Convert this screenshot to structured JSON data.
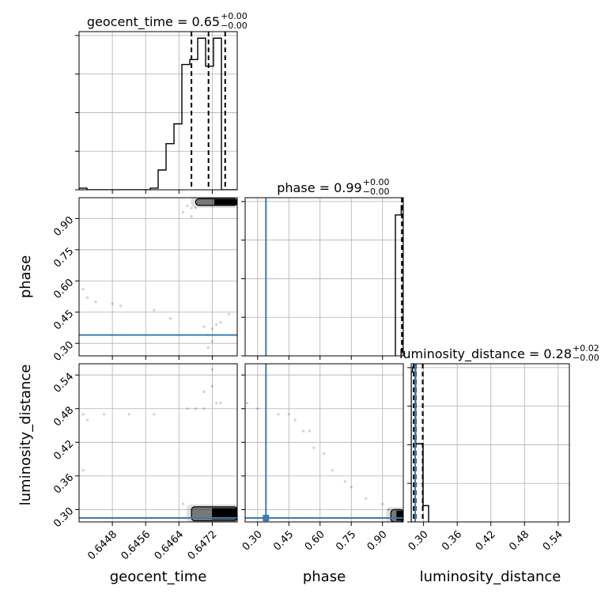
{
  "chart_data": {
    "type": "corner",
    "parameters": [
      "geocent_time",
      "phase",
      "luminosity_distance"
    ],
    "truth_color": "#3d7bb0",
    "truth": {
      "geocent_time": null,
      "phase": 0.34,
      "luminosity_distance": 0.285
    },
    "diagonal": [
      {
        "param": "geocent_time",
        "title": {
          "prefix": "geocent_time = 0.65",
          "upper": "+0.00",
          "lower": "−0.00"
        },
        "xlim": [
          0.644,
          0.6478
        ],
        "bin_edges": [
          0.644,
          0.64419,
          0.64438,
          0.64457,
          0.64476,
          0.64495,
          0.64514,
          0.64533,
          0.64552,
          0.64571,
          0.6459,
          0.64609,
          0.64628,
          0.64647,
          0.64666,
          0.64685,
          0.64704,
          0.64723,
          0.64742,
          0.64761,
          0.6478
        ],
        "counts": [
          1,
          0,
          0,
          0,
          0,
          0,
          0,
          0,
          0,
          1,
          12,
          28,
          40,
          76,
          79,
          92,
          75,
          92,
          0,
          0
        ],
        "ymax": 95,
        "quantiles": [
          0.6467,
          0.64711,
          0.64751
        ]
      },
      {
        "param": "phase",
        "title": {
          "prefix": "phase = 0.99",
          "upper": "+0.00",
          "lower": "−0.00"
        },
        "xlim": [
          0.24,
          1.0
        ],
        "bin_edges": [
          0.962,
          0.99,
          1.0
        ],
        "counts": [
          90,
          96
        ],
        "ymax": 100,
        "quantiles": [
          0.993,
          0.997,
          0.999
        ]
      },
      {
        "param": "luminosity_distance",
        "title": {
          "prefix": "luminosity_distance = 0.28",
          "upper": "+0.02",
          "lower": "−0.00"
        },
        "xlim": [
          0.278,
          0.56
        ],
        "bin_edges": [
          0.278,
          0.2805,
          0.286,
          0.299,
          0.309
        ],
        "counts": [
          92,
          95,
          48,
          10
        ],
        "ymax": 96,
        "quantiles": [
          0.2825,
          0.286,
          0.2985
        ]
      }
    ],
    "ranges": {
      "geocent_time": [
        0.644,
        0.6478
      ],
      "phase": [
        0.24,
        1.0
      ],
      "luminosity_distance": [
        0.278,
        0.56
      ]
    },
    "ticks": {
      "geocent_time": [
        "0.6448",
        "0.6456",
        "0.6464",
        "0.6472"
      ],
      "phase": [
        "0.30",
        "0.45",
        "0.60",
        "0.75",
        "0.90"
      ],
      "luminosity_distance": [
        "0.30",
        "0.36",
        "0.42",
        "0.48",
        "0.54"
      ]
    },
    "tick_values": {
      "geocent_time": [
        0.6448,
        0.6456,
        0.6464,
        0.6472
      ],
      "phase": [
        0.3,
        0.45,
        0.6,
        0.75,
        0.9
      ],
      "luminosity_distance": [
        0.3,
        0.36,
        0.42,
        0.48,
        0.54
      ]
    },
    "scatter": {
      "geocent_time|phase": [
        [
          0.6441,
          0.56
        ],
        [
          0.6442,
          0.52
        ],
        [
          0.6444,
          0.5
        ],
        [
          0.6448,
          0.49
        ],
        [
          0.645,
          0.48
        ],
        [
          0.6458,
          0.46
        ],
        [
          0.6462,
          0.42
        ],
        [
          0.6466,
          0.96
        ],
        [
          0.6467,
          0.95
        ],
        [
          0.6468,
          0.95
        ],
        [
          0.6467,
          0.91
        ],
        [
          0.647,
          0.38
        ],
        [
          0.6472,
          0.37
        ],
        [
          0.6473,
          0.39
        ],
        [
          0.6474,
          0.4
        ],
        [
          0.6472,
          0.31
        ],
        [
          0.6471,
          0.28
        ],
        [
          0.6476,
          0.44
        ],
        [
          0.6471,
          0.34
        ],
        [
          0.6465,
          0.93
        ]
      ],
      "geocent_time|luminosity_distance": [
        [
          0.6441,
          0.47
        ],
        [
          0.6441,
          0.37
        ],
        [
          0.6442,
          0.46
        ],
        [
          0.6446,
          0.47
        ],
        [
          0.6452,
          0.47
        ],
        [
          0.6458,
          0.47
        ],
        [
          0.6466,
          0.48
        ],
        [
          0.6468,
          0.48
        ],
        [
          0.6473,
          0.49
        ],
        [
          0.6474,
          0.49
        ],
        [
          0.647,
          0.48
        ],
        [
          0.6472,
          0.52
        ],
        [
          0.6472,
          0.55
        ],
        [
          0.647,
          0.51
        ],
        [
          0.6465,
          0.31
        ]
      ],
      "phase|luminosity_distance": [
        [
          0.25,
          0.49
        ],
        [
          0.3,
          0.48
        ],
        [
          0.4,
          0.47
        ],
        [
          0.45,
          0.47
        ],
        [
          0.48,
          0.46
        ],
        [
          0.52,
          0.44
        ],
        [
          0.55,
          0.44
        ],
        [
          0.57,
          0.41
        ],
        [
          0.62,
          0.4
        ],
        [
          0.66,
          0.37
        ],
        [
          0.72,
          0.35
        ],
        [
          0.75,
          0.34
        ],
        [
          0.82,
          0.32
        ],
        [
          0.9,
          0.31
        ],
        [
          0.93,
          0.3
        ]
      ]
    },
    "density": {
      "geocent_time|phase": {
        "x": [
          0.6468,
          0.6478
        ],
        "y": [
          0.963,
          0.995
        ]
      },
      "geocent_time|luminosity_distance": {
        "x": [
          0.6467,
          0.6478
        ],
        "y": [
          0.28,
          0.305
        ]
      },
      "phase|luminosity_distance": {
        "x": [
          0.94,
          1.0
        ],
        "y": [
          0.278,
          0.3
        ]
      }
    }
  }
}
